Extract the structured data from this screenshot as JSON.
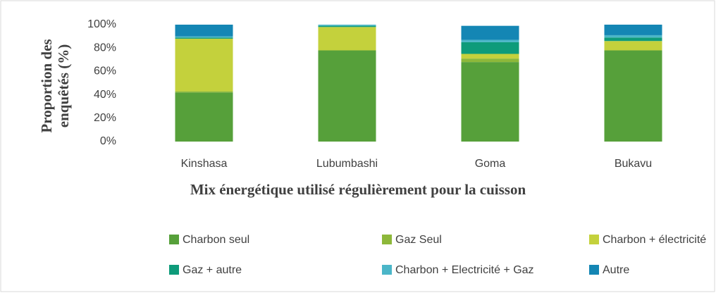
{
  "chart_data": {
    "type": "stacked_bar",
    "y_label": "Proportion des enquêtés (%)",
    "x_label": "Mix énergétique utilisé régulièrement pour la cuisson",
    "categories": [
      "Kinshasa",
      "Lubumbashi",
      "Goma",
      "Bukavu"
    ],
    "series": [
      {
        "name": "Charbon seul",
        "color": "#56a03a",
        "values": [
          42,
          78,
          68,
          78
        ]
      },
      {
        "name": "Gaz Seul",
        "color": "#8db83a",
        "values": [
          1,
          0,
          3,
          0
        ]
      },
      {
        "name": "Charbon + électricité",
        "color": "#c4d13c",
        "values": [
          45,
          20,
          4,
          8
        ]
      },
      {
        "name": "Gaz + autre",
        "color": "#0e9b7a",
        "values": [
          1,
          1,
          10,
          3
        ]
      },
      {
        "name": "Charbon + Electricité + Gaz",
        "color": "#4bb6c8",
        "values": [
          1,
          1,
          2,
          2
        ]
      },
      {
        "name": "Autre",
        "color": "#1486b4",
        "values": [
          10,
          0,
          12,
          9
        ]
      }
    ],
    "ylim": [
      0,
      100
    ],
    "yticks": [
      {
        "value": 0,
        "label": "0%"
      },
      {
        "value": 20,
        "label": "20%"
      },
      {
        "value": 40,
        "label": "40%"
      },
      {
        "value": 60,
        "label": "60%"
      },
      {
        "value": 80,
        "label": "80%"
      },
      {
        "value": 100,
        "label": "100%"
      }
    ],
    "grid": false,
    "legend": "bottom"
  }
}
